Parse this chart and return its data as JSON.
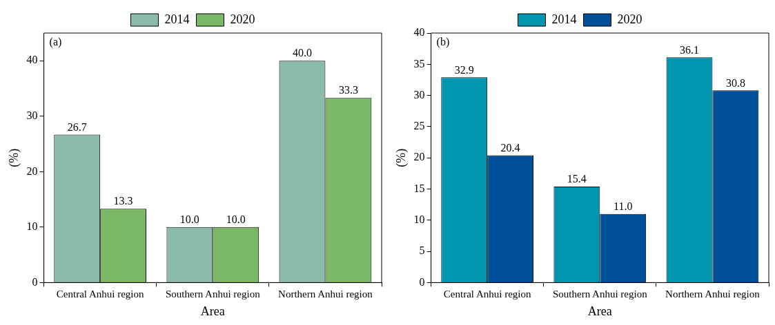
{
  "chart_data": [
    {
      "type": "bar",
      "xlabel": "Area",
      "ylabel": "(%)",
      "annotations": [
        "(a)"
      ],
      "legend": "top",
      "categories": [
        "Central Anhui region",
        "Southern Anhui region",
        "Northern Anhui region"
      ],
      "ylim": [
        0,
        45
      ],
      "yticks": [
        0,
        10,
        20,
        30,
        40
      ],
      "series": [
        {
          "name": "2014",
          "color": "#8bbcaa",
          "values": [
            26.7,
            10.0,
            40.0
          ],
          "value_labels": [
            "26.7",
            "10.0",
            "40.0"
          ]
        },
        {
          "name": "2020",
          "color": "#7ab865",
          "values": [
            13.3,
            10.0,
            33.3
          ],
          "value_labels": [
            "13.3",
            "10.0",
            "33.3"
          ]
        }
      ]
    },
    {
      "type": "bar",
      "xlabel": "Area",
      "ylabel": "(%)",
      "annotations": [
        "(b)"
      ],
      "legend": "top",
      "categories": [
        "Central Anhui region",
        "Southern Anhui region",
        "Northern Anhui region"
      ],
      "ylim": [
        0,
        40
      ],
      "yticks": [
        0,
        5,
        10,
        15,
        20,
        25,
        30,
        35,
        40
      ],
      "series": [
        {
          "name": "2014",
          "color": "#0096b0",
          "values": [
            32.9,
            15.4,
            36.1
          ],
          "value_labels": [
            "32.9",
            "15.4",
            "36.1"
          ]
        },
        {
          "name": "2020",
          "color": "#004f9a",
          "values": [
            20.4,
            11.0,
            30.8
          ],
          "value_labels": [
            "20.4",
            "11.0",
            "30.8"
          ]
        }
      ]
    }
  ]
}
